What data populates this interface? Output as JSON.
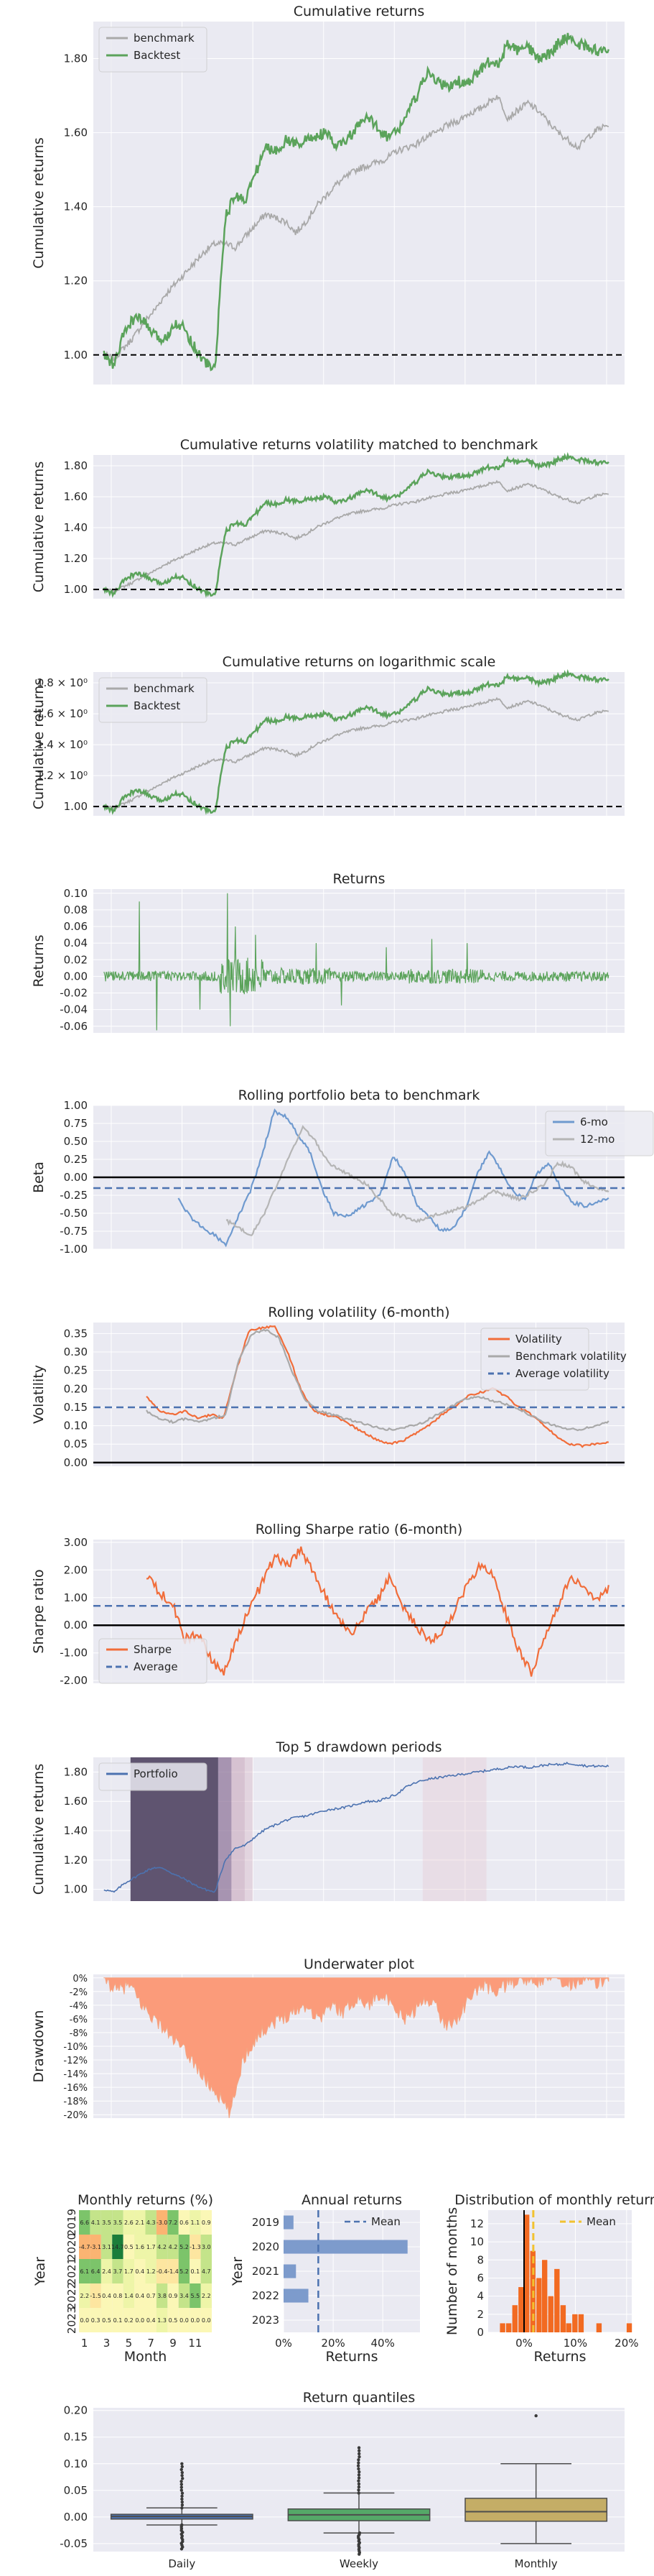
{
  "colors": {
    "background": "#eaeaf2",
    "grid": "#ffffff",
    "benchmark": "#a9a9a9",
    "backtest": "#5ba35b",
    "returns": "#5ba35b",
    "orange": "#f16d3a",
    "blue_dash": "#4c72b0",
    "beta6": "#6f9acf",
    "beta12": "#b5b5b5",
    "portfolio": "#4c72b0",
    "drawdown_fill": "#fb9b7a",
    "drawdown_line": "#f4a582",
    "bar": "#7d9bcc",
    "mean_yellow": "#f2c230",
    "hist_bar": "#f26a21",
    "box_daily": "#4c72b0",
    "box_weekly": "#55a868",
    "box_monthly": "#c4ad66"
  },
  "chart_data": [
    {
      "id": "cumret",
      "type": "line",
      "title": "Cumulative returns",
      "ylabel": "Cumulative returns",
      "ylim": [
        0.92,
        1.9
      ],
      "yticks": [
        "1.00",
        "1.20",
        "1.40",
        "1.60",
        "1.80"
      ],
      "ytick_values": [
        1.0,
        1.2,
        1.4,
        1.6,
        1.8
      ],
      "baseline": 1.0,
      "legend": "top-left",
      "series": [
        {
          "name": "benchmark",
          "color": "benchmark",
          "anchors": [
            1.0,
            0.99,
            1.02,
            1.05,
            1.09,
            1.12,
            1.16,
            1.19,
            1.22,
            1.25,
            1.28,
            1.3,
            1.3,
            1.29,
            1.32,
            1.35,
            1.38,
            1.37,
            1.36,
            1.33,
            1.36,
            1.4,
            1.43,
            1.46,
            1.48,
            1.5,
            1.51,
            1.52,
            1.53,
            1.55,
            1.56,
            1.57,
            1.59,
            1.6,
            1.62,
            1.63,
            1.65,
            1.66,
            1.68,
            1.7,
            1.64,
            1.66,
            1.68,
            1.66,
            1.63,
            1.6,
            1.58,
            1.56,
            1.59,
            1.61,
            1.62
          ]
        },
        {
          "name": "Backtest",
          "color": "backtest",
          "anchors": [
            1.0,
            0.97,
            1.06,
            1.1,
            1.09,
            1.05,
            1.04,
            1.09,
            1.07,
            1.02,
            0.98,
            0.96,
            1.37,
            1.43,
            1.42,
            1.49,
            1.56,
            1.55,
            1.58,
            1.57,
            1.58,
            1.59,
            1.6,
            1.56,
            1.58,
            1.61,
            1.64,
            1.62,
            1.59,
            1.6,
            1.65,
            1.7,
            1.76,
            1.74,
            1.72,
            1.74,
            1.73,
            1.76,
            1.79,
            1.78,
            1.84,
            1.82,
            1.83,
            1.8,
            1.81,
            1.84,
            1.86,
            1.84,
            1.83,
            1.82,
            1.83
          ]
        }
      ]
    },
    {
      "id": "volmatch",
      "type": "line",
      "title": "Cumulative returns volatility matched to benchmark",
      "ylabel": "Cumulative returns",
      "ylim": [
        0.94,
        1.87
      ],
      "yticks": [
        "1.00",
        "1.20",
        "1.40",
        "1.60",
        "1.80"
      ],
      "ytick_values": [
        1.0,
        1.2,
        1.4,
        1.6,
        1.8
      ],
      "baseline": 1.0,
      "series": [
        {
          "name": "benchmark",
          "color": "benchmark",
          "ref": 0
        },
        {
          "name": "Backtest",
          "color": "backtest",
          "ref": 1
        }
      ]
    },
    {
      "id": "logret",
      "type": "line",
      "title": "Cumulative returns on logarithmic scale",
      "ylabel": "Cumulative returns",
      "ylim": [
        0.94,
        1.87
      ],
      "yticks": [
        "1.00",
        "1.2 × 10⁰",
        "1.4 × 10⁰",
        "1.6 × 10⁰",
        "1.8 × 10⁰"
      ],
      "ytick_values": [
        1.0,
        1.2,
        1.4,
        1.6,
        1.8
      ],
      "baseline": 1.0,
      "legend": "top-left",
      "series": [
        {
          "name": "benchmark",
          "color": "benchmark",
          "ref": 0
        },
        {
          "name": "Backtest",
          "color": "backtest",
          "ref": 1
        }
      ]
    },
    {
      "id": "returns",
      "type": "line",
      "title": "Returns",
      "ylabel": "Returns",
      "ylim": [
        -0.068,
        0.105
      ],
      "yticks": [
        "0.10",
        "0.08",
        "0.06",
        "0.04",
        "0.02",
        "0.00",
        "-0.02",
        "-0.04",
        "-0.06"
      ],
      "ytick_values": [
        0.1,
        0.08,
        0.06,
        0.04,
        0.02,
        0.0,
        -0.02,
        -0.04,
        -0.06
      ],
      "spikes": [
        [
          0.07,
          0.09
        ],
        [
          0.105,
          -0.065
        ],
        [
          0.19,
          -0.04
        ],
        [
          0.245,
          0.1
        ],
        [
          0.25,
          -0.06
        ],
        [
          0.26,
          0.06
        ],
        [
          0.3,
          0.05
        ],
        [
          0.42,
          0.04
        ],
        [
          0.47,
          -0.035
        ],
        [
          0.56,
          0.035
        ],
        [
          0.65,
          0.045
        ],
        [
          0.72,
          0.04
        ]
      ]
    },
    {
      "id": "beta",
      "type": "line",
      "title": "Rolling portfolio beta to benchmark",
      "ylabel": "Beta",
      "ylim": [
        -1.0,
        1.0
      ],
      "yticks": [
        "1.00",
        "0.75",
        "0.50",
        "0.25",
        "0.00",
        "-0.25",
        "-0.50",
        "-0.75",
        "-1.00"
      ],
      "ytick_values": [
        1.0,
        0.75,
        0.5,
        0.25,
        0.0,
        -0.25,
        -0.5,
        -0.75,
        -1.0
      ],
      "hline": 0.0,
      "mean_line": -0.15,
      "legend": "top-right",
      "series": [
        {
          "name": "6-mo",
          "color": "beta6",
          "start": 0.16,
          "anchors": [
            -0.3,
            -0.55,
            -0.7,
            -0.8,
            -0.95,
            -0.55,
            -0.2,
            0.3,
            0.92,
            0.85,
            0.6,
            0.35,
            -0.15,
            -0.5,
            -0.55,
            -0.45,
            -0.35,
            -0.2,
            0.3,
            0.05,
            -0.4,
            -0.55,
            -0.75,
            -0.7,
            -0.45,
            0.05,
            0.35,
            0.1,
            -0.2,
            -0.3,
            0.05,
            0.2,
            -0.15,
            -0.35,
            -0.4,
            -0.35,
            -0.3
          ]
        },
        {
          "name": "12-mo",
          "color": "beta12",
          "start": 0.25,
          "anchors": [
            -0.6,
            -0.7,
            -0.8,
            -0.5,
            -0.1,
            0.3,
            0.7,
            0.5,
            0.2,
            0.1,
            0.0,
            -0.1,
            -0.3,
            -0.5,
            -0.55,
            -0.6,
            -0.55,
            -0.5,
            -0.45,
            -0.4,
            -0.3,
            -0.2,
            -0.25,
            -0.3,
            -0.2,
            -0.1,
            0.2,
            0.15,
            -0.05,
            -0.15,
            -0.2
          ]
        }
      ]
    },
    {
      "id": "vol",
      "type": "line",
      "title": "Rolling volatility (6-month)",
      "ylabel": "Volatility",
      "ylim": [
        -0.01,
        0.38
      ],
      "yticks": [
        "0.35",
        "0.30",
        "0.25",
        "0.20",
        "0.15",
        "0.10",
        "0.05",
        "0.00"
      ],
      "ytick_values": [
        0.35,
        0.3,
        0.25,
        0.2,
        0.15,
        0.1,
        0.05,
        0.0
      ],
      "hline": 0.0,
      "mean_line": 0.15,
      "legend": "top-right",
      "series": [
        {
          "name": "Volatility",
          "color": "orange",
          "start": 0.1,
          "anchors": [
            0.18,
            0.14,
            0.13,
            0.14,
            0.12,
            0.13,
            0.12,
            0.25,
            0.36,
            0.365,
            0.37,
            0.3,
            0.2,
            0.14,
            0.13,
            0.12,
            0.1,
            0.08,
            0.06,
            0.05,
            0.06,
            0.08,
            0.1,
            0.13,
            0.15,
            0.18,
            0.19,
            0.2,
            0.18,
            0.15,
            0.13,
            0.1,
            0.07,
            0.05,
            0.045,
            0.05,
            0.055
          ]
        },
        {
          "name": "Benchmark volatility",
          "color": "benchmark",
          "start": 0.1,
          "anchors": [
            0.14,
            0.12,
            0.11,
            0.12,
            0.11,
            0.12,
            0.13,
            0.28,
            0.35,
            0.36,
            0.34,
            0.25,
            0.17,
            0.14,
            0.13,
            0.12,
            0.11,
            0.1,
            0.09,
            0.09,
            0.1,
            0.11,
            0.13,
            0.15,
            0.17,
            0.18,
            0.17,
            0.16,
            0.15,
            0.13,
            0.11,
            0.1,
            0.09,
            0.09,
            0.1,
            0.11
          ]
        },
        {
          "name": "Average volatility",
          "color": "blue_dash",
          "dashed": true
        }
      ]
    },
    {
      "id": "sharpe",
      "type": "line",
      "title": "Rolling Sharpe ratio (6-month)",
      "ylabel": "Sharpe ratio",
      "ylim": [
        -2.1,
        3.1
      ],
      "yticks": [
        "3.00",
        "2.00",
        "1.00",
        "0.00",
        "-1.00",
        "-2.00"
      ],
      "ytick_values": [
        3.0,
        2.0,
        1.0,
        0.0,
        -1.0,
        -2.0
      ],
      "hline": 0.0,
      "mean_line": 0.7,
      "legend": "bottom-left",
      "series": [
        {
          "name": "Sharpe",
          "color": "orange",
          "start": 0.1,
          "anchors": [
            1.8,
            1.2,
            0.8,
            -0.5,
            -0.3,
            -1.2,
            -1.8,
            -0.5,
            0.6,
            1.5,
            2.5,
            2.2,
            2.7,
            1.9,
            1.0,
            0.2,
            -0.3,
            0.4,
            0.9,
            1.8,
            0.6,
            0.0,
            -0.5,
            -0.3,
            0.5,
            1.5,
            2.2,
            1.8,
            0.4,
            -0.9,
            -1.7,
            -0.5,
            0.6,
            1.8,
            1.4,
            0.8,
            1.3
          ]
        },
        {
          "name": "Average",
          "color": "blue_dash",
          "dashed": true
        }
      ]
    },
    {
      "id": "drawdown",
      "type": "line",
      "title": "Top 5 drawdown periods",
      "ylabel": "Cumulative returns",
      "ylim": [
        0.92,
        1.9
      ],
      "yticks": [
        "1.80",
        "1.60",
        "1.40",
        "1.20",
        "1.00"
      ],
      "ytick_values": [
        1.8,
        1.6,
        1.4,
        1.2,
        1.0
      ],
      "legend": "top-left",
      "spans": [
        [
          0.07,
          0.235,
          0.45
        ],
        [
          0.235,
          0.26,
          0.25
        ],
        [
          0.26,
          0.285,
          0.18
        ],
        [
          0.285,
          0.3,
          0.1
        ],
        [
          0.62,
          0.74,
          0.08
        ]
      ],
      "series": [
        {
          "name": "Portfolio",
          "color": "portfolio",
          "anchors": [
            1.0,
            0.98,
            1.04,
            1.08,
            1.12,
            1.15,
            1.14,
            1.1,
            1.07,
            1.03,
            1.0,
            0.98,
            1.2,
            1.28,
            1.3,
            1.36,
            1.41,
            1.44,
            1.47,
            1.49,
            1.5,
            1.52,
            1.54,
            1.55,
            1.56,
            1.58,
            1.6,
            1.6,
            1.62,
            1.65,
            1.7,
            1.73,
            1.75,
            1.76,
            1.77,
            1.78,
            1.79,
            1.8,
            1.81,
            1.82,
            1.83,
            1.84,
            1.83,
            1.84,
            1.85,
            1.85,
            1.86,
            1.85,
            1.84,
            1.84,
            1.84
          ]
        }
      ]
    },
    {
      "id": "underwater",
      "type": "area",
      "title": "Underwater plot",
      "ylabel": "Drawdown",
      "ylim": [
        -0.205,
        0.005
      ],
      "yticks": [
        "0%",
        "-2%",
        "-4%",
        "-6%",
        "-8%",
        "-10%",
        "-12%",
        "-14%",
        "-16%",
        "-18%",
        "-20%"
      ],
      "ytick_values": [
        0.0,
        -0.02,
        -0.04,
        -0.06,
        -0.08,
        -0.1,
        -0.12,
        -0.14,
        -0.16,
        -0.18,
        -0.2
      ],
      "anchors": [
        0.0,
        -0.02,
        -0.01,
        -0.04,
        -0.06,
        -0.08,
        -0.1,
        -0.12,
        -0.15,
        -0.17,
        -0.2,
        -0.12,
        -0.09,
        -0.07,
        -0.06,
        -0.05,
        -0.04,
        -0.06,
        -0.04,
        -0.05,
        -0.03,
        -0.04,
        -0.02,
        -0.05,
        -0.06,
        -0.04,
        -0.03,
        -0.07,
        -0.06,
        -0.03,
        -0.01,
        -0.02,
        -0.01,
        0.0,
        -0.01,
        0.0,
        0.0,
        -0.01,
        0.0,
        -0.01,
        0.0
      ]
    },
    {
      "id": "monthly_heatmap",
      "type": "heatmap",
      "title": "Monthly returns (%)",
      "xlabel": "Month",
      "ylabel": "Year",
      "xticks": [
        "1",
        "3",
        "5",
        "7",
        "9",
        "11"
      ],
      "yticks": [
        "2019",
        "2020",
        "2021",
        "2022",
        "2023"
      ],
      "values": [
        [
          6.6,
          4.1,
          3.5,
          3.5,
          2.6,
          2.1,
          4.3,
          -3.0,
          7.2,
          0.6,
          1.1,
          0.9
        ],
        [
          -4.7,
          -3.1,
          3.1,
          14.7,
          0.5,
          1.6,
          1.7,
          4.2,
          4.2,
          5.2,
          -1.3,
          3.0
        ],
        [
          6.1,
          6.4,
          2.4,
          3.7,
          1.7,
          0.4,
          1.2,
          -0.4,
          -1.4,
          5.2,
          0.1,
          4.7
        ],
        [
          2.2,
          -1.5,
          0.4,
          0.8,
          1.4,
          0.4,
          0.7,
          3.8,
          0.9,
          3.4,
          5.5,
          2.2
        ],
        [
          0.0,
          0.3,
          0.5,
          0.1,
          0.2,
          0.0,
          0.4,
          1.3,
          0.5,
          0.0,
          0.0,
          0.0
        ]
      ]
    },
    {
      "id": "annual",
      "type": "bar",
      "title": "Annual returns",
      "xlabel": "Returns",
      "ylabel": "Year",
      "categories": [
        "2019",
        "2020",
        "2021",
        "2022",
        "2023"
      ],
      "values": [
        0.04,
        0.5,
        0.05,
        0.1,
        0.0
      ],
      "mean": 0.14,
      "xticks": [
        "0%",
        "20%",
        "40%"
      ],
      "xtick_values": [
        0.0,
        0.2,
        0.4
      ],
      "xlim": [
        0.0,
        0.55
      ],
      "legend_entry": "Mean"
    },
    {
      "id": "dist",
      "type": "bar",
      "title": "Distribution of monthly returns",
      "xlabel": "Returns",
      "ylabel": "Number of months",
      "yticks": [
        "0",
        "2",
        "4",
        "6",
        "8",
        "10",
        "12"
      ],
      "ytick_values": [
        0,
        2,
        4,
        6,
        8,
        10,
        12
      ],
      "ylim": [
        0,
        13.5
      ],
      "xticks": [
        "0%",
        "10%",
        "20%"
      ],
      "xtick_values": [
        0.0,
        0.1,
        0.2
      ],
      "xlim": [
        -0.07,
        0.21
      ],
      "bin_width": 0.0117,
      "bins": [
        [
          -0.047,
          1
        ],
        [
          -0.035,
          1
        ],
        [
          -0.023,
          3
        ],
        [
          -0.011,
          5
        ],
        [
          0.0,
          13
        ],
        [
          0.012,
          9
        ],
        [
          0.024,
          6
        ],
        [
          0.035,
          8
        ],
        [
          0.047,
          4
        ],
        [
          0.059,
          7
        ],
        [
          0.071,
          3
        ],
        [
          0.082,
          1
        ],
        [
          0.094,
          2
        ],
        [
          0.106,
          2
        ],
        [
          0.141,
          1
        ],
        [
          0.2,
          1
        ]
      ],
      "mean": 0.018,
      "legend_entry": "Mean"
    },
    {
      "id": "quantiles",
      "type": "box",
      "title": "Return quantiles",
      "categories": [
        "Daily",
        "Weekly",
        "Monthly"
      ],
      "yticks": [
        "0.20",
        "0.15",
        "0.10",
        "0.05",
        "0.00",
        "-0.05"
      ],
      "ytick_values": [
        0.2,
        0.15,
        0.1,
        0.05,
        0.0,
        -0.05
      ],
      "ylim": [
        -0.065,
        0.205
      ],
      "boxes": [
        {
          "q1": -0.004,
          "median": 0.001,
          "q3": 0.005,
          "lo": -0.015,
          "hi": 0.017,
          "out_lo": -0.06,
          "out_hi": 0.1
        },
        {
          "q1": -0.007,
          "median": 0.004,
          "q3": 0.015,
          "lo": -0.03,
          "hi": 0.045,
          "out_lo": -0.07,
          "out_hi": 0.13
        },
        {
          "q1": -0.008,
          "median": 0.01,
          "q3": 0.035,
          "lo": -0.05,
          "hi": 0.1,
          "out_lo": null,
          "out_hi": 0.19
        }
      ]
    }
  ]
}
